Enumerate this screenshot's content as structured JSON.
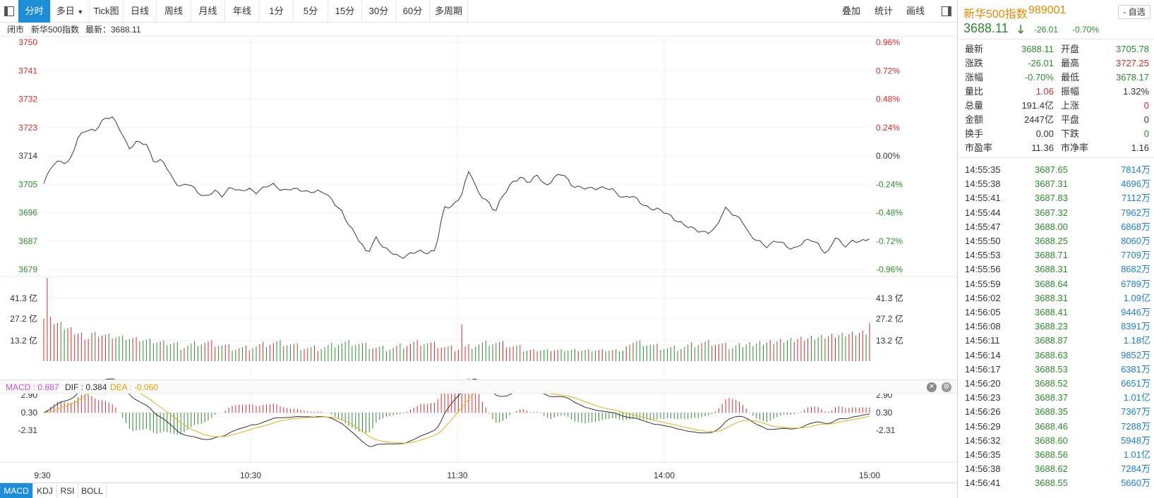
{
  "toolbar": {
    "tabs": [
      "分时",
      "多日",
      "Tick图",
      "日线",
      "周线",
      "月线",
      "年线",
      "1分",
      "5分",
      "15分",
      "30分",
      "60分",
      "多周期"
    ],
    "active_tab": "分时",
    "right_buttons": [
      "叠加",
      "统计",
      "画线"
    ]
  },
  "info_line": {
    "status": "闭市",
    "name": "新华500指数",
    "latest_label": "最新：3688.11"
  },
  "chart_data": {
    "type": "line",
    "price_axis": {
      "ticks": [
        "3750",
        "3741",
        "3732",
        "3723",
        "3714",
        "3705",
        "3696",
        "3687",
        "3679"
      ],
      "range": [
        3679,
        3750
      ]
    },
    "pct_axis": {
      "ticks": [
        "0.96%",
        "0.72%",
        "0.48%",
        "0.24%",
        "0.00%",
        "-0.24%",
        "-0.48%",
        "-0.72%",
        "-0.96%"
      ]
    },
    "prev_close": 3714.12,
    "x_labels": [
      "9:30",
      "10:30",
      "11:30",
      "14:00",
      "15:00"
    ],
    "price_series": [
      3705.8,
      3711.5,
      3713,
      3712.5,
      3719.7,
      3722.8,
      3722.6,
      3725.6,
      3726.7,
      3723,
      3716.6,
      3718.7,
      3718.6,
      3712.5,
      3712.8,
      3708,
      3705,
      3705.7,
      3703.3,
      3701.9,
      3703.5,
      3701.7,
      3705.3,
      3703.4,
      3703.9,
      3703.2,
      3705.2,
      3705.2,
      3703.6,
      3704.6,
      3703.7,
      3703,
      3703.9,
      3703,
      3699.9,
      3697.3,
      3692.4,
      3688,
      3684.1,
      3689.2,
      3685.3,
      3684.1,
      3683,
      3683.6,
      3684.6,
      3684.5,
      3684.9,
      3698,
      3699,
      3702,
      3710,
      3703,
      3701,
      3696.7,
      3702.3,
      3706.5,
      3707.7,
      3705.8,
      3709,
      3704.8,
      3707.5,
      3709.3,
      3705.5,
      3704.2,
      3704.4,
      3704.7,
      3704.4,
      3703.4,
      3701.6,
      3702.2,
      3699.8,
      3698.4,
      3698.1,
      3696.5,
      3694.9,
      3693.6,
      3691.8,
      3690.8,
      3690.8,
      3692,
      3698,
      3696.5,
      3694.5,
      3689,
      3688,
      3686.3,
      3687.8,
      3686.8,
      3685.5,
      3686.9,
      3688.4,
      3687.1,
      3683.5,
      3689,
      3686.4,
      3688,
      3687.4,
      3688.55
    ],
    "volume_axis": {
      "ticks": [
        "41.3 亿",
        "27.2 亿",
        "13.2 亿"
      ]
    },
    "macd_axis": {
      "ticks": [
        "2.90",
        "0.30",
        "-2.31"
      ]
    },
    "macd": {
      "MACD": 0.887,
      "DIF": 0.384,
      "DEA": -0.06
    }
  },
  "macd_legend": {
    "macd": "MACD : 0.887",
    "dif": "DIF : 0.384",
    "dea": "DEA : -0.060"
  },
  "bottom_tabs": [
    "MACD",
    "KDJ",
    "RSI",
    "BOLL"
  ],
  "panel": {
    "name": "新华500指数",
    "code": "989001",
    "favorite": "- 自选",
    "price": "3688.11",
    "change": "-26.01",
    "change_pct": "-0.70%",
    "stats": [
      {
        "l1": "最新",
        "v1": "3688.11",
        "c1": "green",
        "l2": "开盘",
        "v2": "3705.78",
        "c2": "green"
      },
      {
        "l1": "涨跌",
        "v1": "-26.01",
        "c1": "green",
        "l2": "最高",
        "v2": "3727.25",
        "c2": "red"
      },
      {
        "l1": "涨幅",
        "v1": "-0.70%",
        "c1": "green",
        "l2": "最低",
        "v2": "3678.17",
        "c2": "green"
      },
      {
        "l1": "量比",
        "v1": "1.06",
        "c1": "red",
        "l2": "振幅",
        "v2": "1.32%",
        "c2": "black"
      },
      {
        "l1": "总量",
        "v1": "191.4亿",
        "c1": "black",
        "l2": "上涨",
        "v2": "0",
        "c2": "red"
      },
      {
        "l1": "金额",
        "v1": "2447亿",
        "c1": "black",
        "l2": "平盘",
        "v2": "0",
        "c2": "black"
      },
      {
        "l1": "换手",
        "v1": "0.00",
        "c1": "black",
        "l2": "下跌",
        "v2": "0",
        "c2": "green"
      },
      {
        "l1": "市盈率",
        "v1": "11.36",
        "c1": "black",
        "l2": "市净率",
        "v2": "1.16",
        "c2": "black"
      }
    ],
    "ticks": [
      {
        "time": "14:55:35",
        "price": "3687.65",
        "vol": "7814万"
      },
      {
        "time": "14:55:38",
        "price": "3687.31",
        "vol": "4696万"
      },
      {
        "time": "14:55:41",
        "price": "3687.83",
        "vol": "7112万"
      },
      {
        "time": "14:55:44",
        "price": "3687.32",
        "vol": "7962万"
      },
      {
        "time": "14:55:47",
        "price": "3688.00",
        "vol": "6868万"
      },
      {
        "time": "14:55:50",
        "price": "3688.25",
        "vol": "8060万"
      },
      {
        "time": "14:55:53",
        "price": "3688.71",
        "vol": "7709万"
      },
      {
        "time": "14:55:56",
        "price": "3688.31",
        "vol": "8682万"
      },
      {
        "time": "14:55:59",
        "price": "3688.64",
        "vol": "6789万"
      },
      {
        "time": "14:56:02",
        "price": "3688.31",
        "vol": "1.09亿"
      },
      {
        "time": "14:56:05",
        "price": "3688.41",
        "vol": "9446万"
      },
      {
        "time": "14:56:08",
        "price": "3688.23",
        "vol": "8391万"
      },
      {
        "time": "14:56:11",
        "price": "3688.87",
        "vol": "1.18亿"
      },
      {
        "time": "14:56:14",
        "price": "3688.63",
        "vol": "9852万"
      },
      {
        "time": "14:56:17",
        "price": "3688.53",
        "vol": "6381万"
      },
      {
        "time": "14:56:20",
        "price": "3688.52",
        "vol": "6651万"
      },
      {
        "time": "14:56:23",
        "price": "3688.37",
        "vol": "1.01亿"
      },
      {
        "time": "14:56:26",
        "price": "3688.35",
        "vol": "7367万"
      },
      {
        "time": "14:56:29",
        "price": "3688.46",
        "vol": "7288万"
      },
      {
        "time": "14:56:32",
        "price": "3688.60",
        "vol": "5948万"
      },
      {
        "time": "14:56:35",
        "price": "3688.56",
        "vol": "1.01亿"
      },
      {
        "time": "14:56:38",
        "price": "3688.62",
        "vol": "7284万"
      },
      {
        "time": "14:56:41",
        "price": "3688.55",
        "vol": "5660万"
      }
    ]
  },
  "colors": {
    "up": "#d02b2b",
    "down": "#2f8a2f",
    "accent": "#1f8dd6",
    "dea": "#e0b020",
    "dif": "#333333"
  }
}
